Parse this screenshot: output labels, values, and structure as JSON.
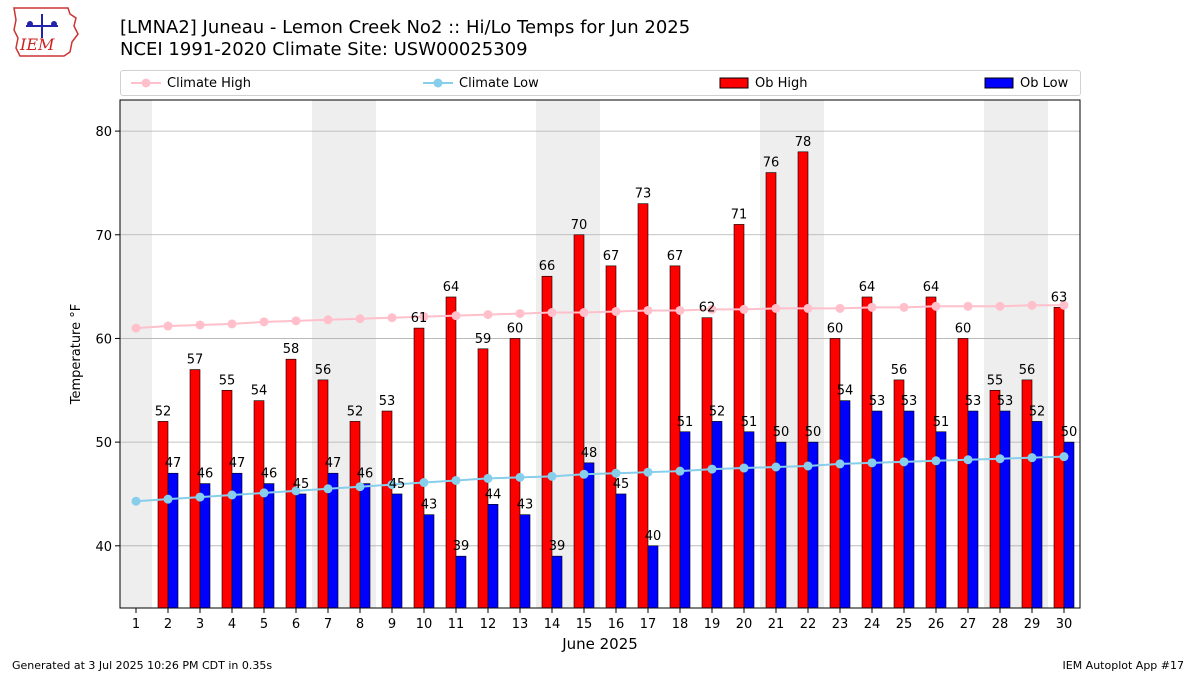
{
  "title_line1": "[LMNA2] Juneau - Lemon Creek No2 :: Hi/Lo Temps for Jun 2025",
  "title_line2": "NCEI 1991-2020 Climate Site: USW00025309",
  "logo_text": "IEM",
  "footer_left": "Generated at 3 Jul 2025 10:26 PM CDT in 0.35s",
  "footer_right": "IEM Autoplot App #17",
  "legend": {
    "climate_high": "Climate High",
    "climate_low": "Climate Low",
    "ob_high": "Ob High",
    "ob_low": "Ob Low"
  },
  "colors": {
    "ob_high": "#ff0000",
    "ob_low": "#0000ff",
    "climate_high": "#ffc0cb",
    "climate_low": "#87ceeb",
    "weekend_band": "#eeeeee",
    "grid": "#b0b0b0"
  },
  "chart_data": {
    "type": "bar",
    "xlabel": "June 2025",
    "ylabel": "Temperature °F",
    "ylim": [
      34,
      83
    ],
    "yticks": [
      40,
      50,
      60,
      70,
      80
    ],
    "grid": "horizontal",
    "legend_placement": "top",
    "categories": [
      "1",
      "2",
      "3",
      "4",
      "5",
      "6",
      "7",
      "8",
      "9",
      "10",
      "11",
      "12",
      "13",
      "14",
      "15",
      "16",
      "17",
      "18",
      "19",
      "20",
      "21",
      "22",
      "23",
      "24",
      "25",
      "26",
      "27",
      "28",
      "29",
      "30"
    ],
    "shaded_days": [
      1,
      7,
      8,
      14,
      15,
      21,
      22,
      28,
      29
    ],
    "series": [
      {
        "name": "Ob High",
        "kind": "bar",
        "values": [
          null,
          52,
          57,
          55,
          54,
          58,
          56,
          52,
          53,
          61,
          64,
          59,
          60,
          66,
          70,
          67,
          73,
          67,
          62,
          71,
          76,
          78,
          60,
          64,
          56,
          64,
          60,
          55,
          56,
          63
        ]
      },
      {
        "name": "Ob Low",
        "kind": "bar",
        "values": [
          null,
          47,
          46,
          47,
          46,
          45,
          47,
          46,
          45,
          43,
          39,
          44,
          43,
          39,
          48,
          45,
          40,
          51,
          52,
          51,
          50,
          50,
          54,
          53,
          53,
          51,
          53,
          53,
          52,
          50
        ]
      },
      {
        "name": "Climate High",
        "kind": "line",
        "values": [
          61.0,
          61.2,
          61.3,
          61.4,
          61.6,
          61.7,
          61.8,
          61.9,
          62.0,
          62.1,
          62.2,
          62.3,
          62.4,
          62.5,
          62.5,
          62.6,
          62.7,
          62.7,
          62.8,
          62.8,
          62.9,
          62.9,
          62.9,
          63.0,
          63.0,
          63.1,
          63.1,
          63.1,
          63.2,
          63.2
        ]
      },
      {
        "name": "Climate Low",
        "kind": "line",
        "values": [
          44.3,
          44.5,
          44.7,
          44.9,
          45.1,
          45.3,
          45.5,
          45.7,
          45.9,
          46.1,
          46.3,
          46.5,
          46.6,
          46.7,
          46.9,
          47.0,
          47.1,
          47.2,
          47.4,
          47.5,
          47.6,
          47.7,
          47.9,
          48.0,
          48.1,
          48.2,
          48.3,
          48.4,
          48.5,
          48.6
        ]
      }
    ]
  }
}
